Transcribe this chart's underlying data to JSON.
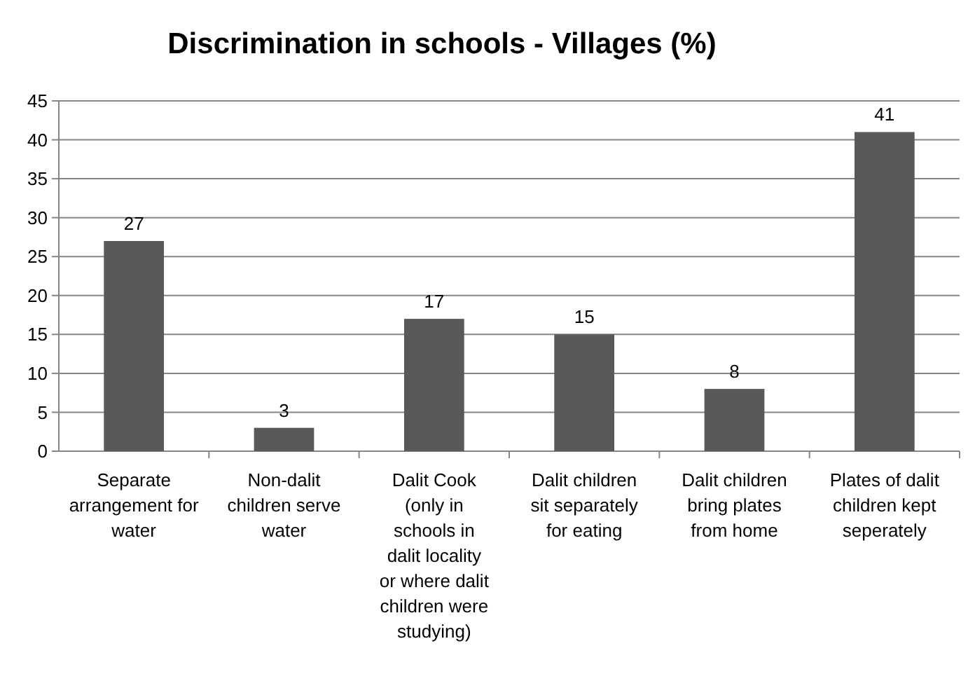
{
  "chart_data": {
    "type": "bar",
    "title": "Discrimination in schools - Villages (%)",
    "categories": [
      "Separate arrangement for water",
      "Non-dalit children serve water",
      "Dalit Cook (only in schools in dalit locality or where dalit children were studying)",
      "Dalit children sit separately for eating",
      "Dalit children bring plates from home",
      "Plates of dalit children kept seperately"
    ],
    "values": [
      27,
      3,
      17,
      15,
      8,
      41
    ],
    "color": "#595959",
    "ylim": [
      0,
      45
    ],
    "yticks": [
      0,
      5,
      10,
      15,
      20,
      25,
      30,
      35,
      40,
      45
    ],
    "grid": "y",
    "data_labels": true
  }
}
